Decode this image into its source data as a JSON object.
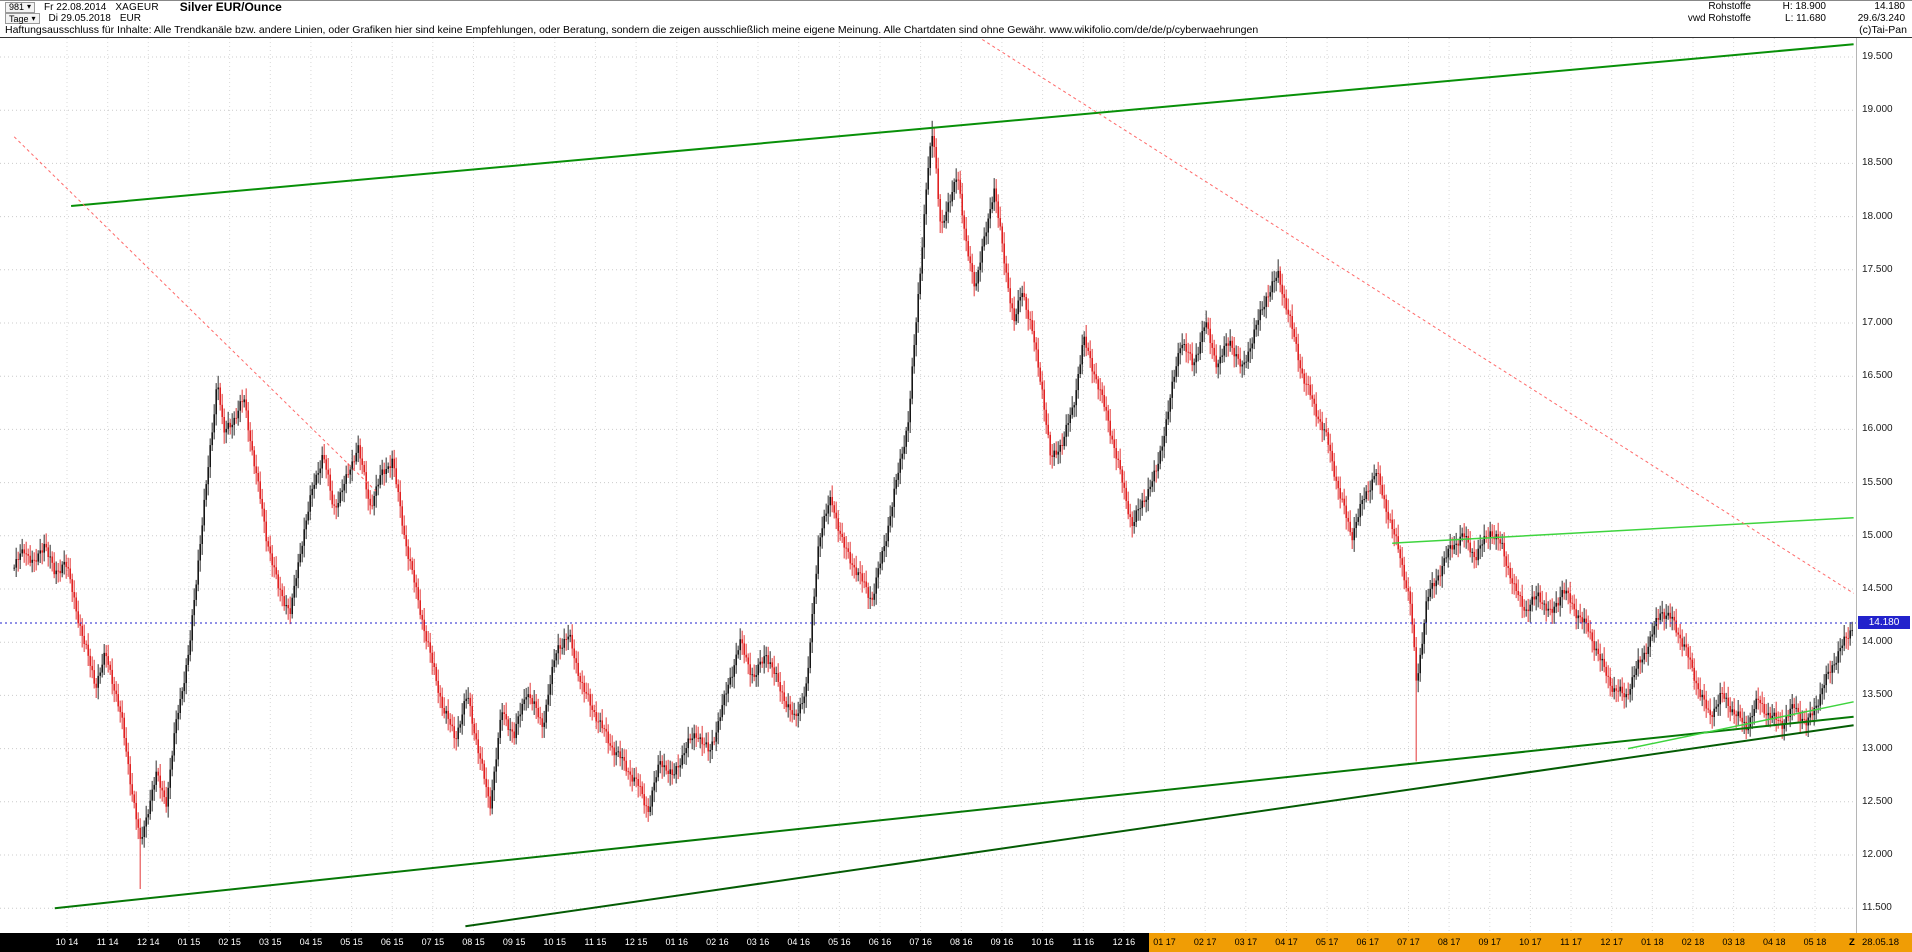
{
  "header": {
    "bar_count": "981",
    "period": "Tage",
    "start_date": "Fr 22.08.2014",
    "end_date": "Di 29.05.2018",
    "symbol": "XAGEUR",
    "currency": "EUR",
    "title": "Silver EUR/Ounce",
    "feed1": "Rohstoffe",
    "feed2": "vwd Rohstoffe",
    "high_label": "H: 18.900",
    "low_label": "L: 11.680",
    "last_price": "14.180",
    "extra_info": "29.6/3.240"
  },
  "disclaimer": {
    "text": "Haftungsausschluss für Inhalte: Alle Trendkanäle bzw. andere Linien, oder Grafiken hier sind keine Empfehlungen, oder Beratung, sondern die zeigen ausschließlich meine eigene Meinung. Alle Chartdaten sind ohne Gewähr.  www.wikifolio.com/de/de/p/cyberwaehrungen",
    "copyright": "(c)Tai-Pan"
  },
  "timeline": {
    "z_label": "Z",
    "end_date_label": "28.05.18",
    "highlight_from_label": "01 17"
  },
  "chart_data": {
    "type": "candlestick",
    "title": "Silver EUR/Ounce",
    "symbol": "XAGEUR",
    "unit": "EUR",
    "high": 18.9,
    "low": 11.68,
    "last_price": 14.18,
    "ylim": [
      11.27,
      19.68
    ],
    "grid": true,
    "y_ticks": [
      "19.500",
      "19.000",
      "18.500",
      "18.000",
      "17.500",
      "17.000",
      "16.500",
      "16.000",
      "15.500",
      "15.000",
      "14.500",
      "14.000",
      "13.500",
      "13.000",
      "12.500",
      "12.000",
      "11.500"
    ],
    "x_labels": [
      "10 14",
      "11 14",
      "12 14",
      "01 15",
      "02 15",
      "03 15",
      "04 15",
      "05 15",
      "06 15",
      "07 15",
      "08 15",
      "09 15",
      "10 15",
      "11 15",
      "12 15",
      "01 16",
      "02 16",
      "03 16",
      "04 16",
      "05 16",
      "06 16",
      "07 16",
      "08 16",
      "09 16",
      "10 16",
      "11 16",
      "12 16",
      "01 17",
      "02 17",
      "03 17",
      "04 17",
      "05 17",
      "06 17",
      "07 17",
      "08 17",
      "09 17",
      "10 17",
      "11 17",
      "12 17",
      "01 18",
      "02 18",
      "03 18",
      "04 18",
      "05 18"
    ],
    "waypoints": [
      [
        -1.3,
        14.7
      ],
      [
        -1.05,
        14.88
      ],
      [
        -0.8,
        14.72
      ],
      [
        -0.55,
        14.95
      ],
      [
        -0.3,
        14.62
      ],
      [
        -0.05,
        14.78
      ],
      [
        0.2,
        14.35
      ],
      [
        0.45,
        13.95
      ],
      [
        0.7,
        13.6
      ],
      [
        0.95,
        13.88
      ],
      [
        1.15,
        13.6
      ],
      [
        1.35,
        13.25
      ],
      [
        1.6,
        12.6
      ],
      [
        1.8,
        12.1
      ],
      [
        2.0,
        12.45
      ],
      [
        2.2,
        12.75
      ],
      [
        2.45,
        12.5
      ],
      [
        2.7,
        13.3
      ],
      [
        3.0,
        13.9
      ],
      [
        3.3,
        15.05
      ],
      [
        3.55,
        15.9
      ],
      [
        3.7,
        16.5
      ],
      [
        3.85,
        15.95
      ],
      [
        4.1,
        16.1
      ],
      [
        4.35,
        16.28
      ],
      [
        4.6,
        15.7
      ],
      [
        4.9,
        15.0
      ],
      [
        5.2,
        14.5
      ],
      [
        5.5,
        14.28
      ],
      [
        5.8,
        15.0
      ],
      [
        6.05,
        15.45
      ],
      [
        6.3,
        15.78
      ],
      [
        6.55,
        15.25
      ],
      [
        6.85,
        15.5
      ],
      [
        7.15,
        15.85
      ],
      [
        7.45,
        15.28
      ],
      [
        7.75,
        15.58
      ],
      [
        8.0,
        15.72
      ],
      [
        8.3,
        15.0
      ],
      [
        8.6,
        14.45
      ],
      [
        8.95,
        13.85
      ],
      [
        9.25,
        13.38
      ],
      [
        9.55,
        13.1
      ],
      [
        9.85,
        13.5
      ],
      [
        10.15,
        12.92
      ],
      [
        10.4,
        12.46
      ],
      [
        10.7,
        13.35
      ],
      [
        11.0,
        13.12
      ],
      [
        11.3,
        13.55
      ],
      [
        11.7,
        13.22
      ],
      [
        12.05,
        13.95
      ],
      [
        12.35,
        14.05
      ],
      [
        12.7,
        13.55
      ],
      [
        13.0,
        13.32
      ],
      [
        13.35,
        13.05
      ],
      [
        13.7,
        12.86
      ],
      [
        14.05,
        12.65
      ],
      [
        14.3,
        12.42
      ],
      [
        14.6,
        12.9
      ],
      [
        14.9,
        12.72
      ],
      [
        15.2,
        13.0
      ],
      [
        15.5,
        13.15
      ],
      [
        15.8,
        12.95
      ],
      [
        16.2,
        13.5
      ],
      [
        16.55,
        14.0
      ],
      [
        16.9,
        13.66
      ],
      [
        17.2,
        13.9
      ],
      [
        17.5,
        13.6
      ],
      [
        17.9,
        13.26
      ],
      [
        18.2,
        13.6
      ],
      [
        18.5,
        15.0
      ],
      [
        18.8,
        15.35
      ],
      [
        19.1,
        14.9
      ],
      [
        19.45,
        14.65
      ],
      [
        19.8,
        14.4
      ],
      [
        20.1,
        14.9
      ],
      [
        20.4,
        15.5
      ],
      [
        20.7,
        16.1
      ],
      [
        20.95,
        17.3
      ],
      [
        21.15,
        18.35
      ],
      [
        21.3,
        18.8
      ],
      [
        21.5,
        17.9
      ],
      [
        21.7,
        18.1
      ],
      [
        21.9,
        18.45
      ],
      [
        22.1,
        17.75
      ],
      [
        22.35,
        17.35
      ],
      [
        22.6,
        17.85
      ],
      [
        22.8,
        18.28
      ],
      [
        23.05,
        17.6
      ],
      [
        23.3,
        17.0
      ],
      [
        23.5,
        17.32
      ],
      [
        23.75,
        16.9
      ],
      [
        24.0,
        16.35
      ],
      [
        24.2,
        15.7
      ],
      [
        24.5,
        15.9
      ],
      [
        24.75,
        16.2
      ],
      [
        25.0,
        16.85
      ],
      [
        25.3,
        16.5
      ],
      [
        25.6,
        16.1
      ],
      [
        25.9,
        15.6
      ],
      [
        26.2,
        15.1
      ],
      [
        26.5,
        15.35
      ],
      [
        26.8,
        15.6
      ],
      [
        27.1,
        16.2
      ],
      [
        27.4,
        16.85
      ],
      [
        27.7,
        16.6
      ],
      [
        28.0,
        17.0
      ],
      [
        28.3,
        16.6
      ],
      [
        28.6,
        16.85
      ],
      [
        28.9,
        16.55
      ],
      [
        29.2,
        16.9
      ],
      [
        29.5,
        17.25
      ],
      [
        29.8,
        17.45
      ],
      [
        30.1,
        17.0
      ],
      [
        30.4,
        16.5
      ],
      [
        30.7,
        16.2
      ],
      [
        31.0,
        15.9
      ],
      [
        31.3,
        15.4
      ],
      [
        31.6,
        15.0
      ],
      [
        31.9,
        15.35
      ],
      [
        32.2,
        15.6
      ],
      [
        32.5,
        15.2
      ],
      [
        32.8,
        14.8
      ],
      [
        33.05,
        14.35
      ],
      [
        33.2,
        13.6
      ],
      [
        33.45,
        14.4
      ],
      [
        33.75,
        14.65
      ],
      [
        34.05,
        14.9
      ],
      [
        34.35,
        15.0
      ],
      [
        34.65,
        14.8
      ],
      [
        35.0,
        15.05
      ],
      [
        35.3,
        14.9
      ],
      [
        35.6,
        14.5
      ],
      [
        35.9,
        14.3
      ],
      [
        36.2,
        14.45
      ],
      [
        36.5,
        14.25
      ],
      [
        36.8,
        14.5
      ],
      [
        37.1,
        14.3
      ],
      [
        37.45,
        14.1
      ],
      [
        37.75,
        13.8
      ],
      [
        38.05,
        13.55
      ],
      [
        38.35,
        13.5
      ],
      [
        38.65,
        13.78
      ],
      [
        38.95,
        14.02
      ],
      [
        39.2,
        14.3
      ],
      [
        39.5,
        14.2
      ],
      [
        39.8,
        13.95
      ],
      [
        40.1,
        13.6
      ],
      [
        40.4,
        13.3
      ],
      [
        40.7,
        13.5
      ],
      [
        41.0,
        13.35
      ],
      [
        41.3,
        13.2
      ],
      [
        41.6,
        13.45
      ],
      [
        41.9,
        13.3
      ],
      [
        42.2,
        13.24
      ],
      [
        42.5,
        13.4
      ],
      [
        42.8,
        13.22
      ],
      [
        43.1,
        13.48
      ],
      [
        43.35,
        13.72
      ],
      [
        43.6,
        13.92
      ],
      [
        43.8,
        14.05
      ],
      [
        43.95,
        14.18
      ]
    ],
    "spikes": [
      {
        "m": 1.8,
        "price": 11.68
      },
      {
        "m": 21.3,
        "price": 18.9
      },
      {
        "m": 33.2,
        "price": 12.88
      }
    ],
    "trendlines": [
      {
        "name": "rising-channel-upper",
        "m1": 0.1,
        "p1": 18.1,
        "m2": 43.95,
        "p2": 19.62,
        "color": "#089008",
        "width": 2,
        "dash": null
      },
      {
        "name": "support-long",
        "m1": -0.3,
        "p1": 11.5,
        "m2": 43.95,
        "p2": 13.3,
        "color": "#067806",
        "width": 2,
        "dash": null
      },
      {
        "name": "support-steep",
        "m1": 9.8,
        "p1": 11.33,
        "m2": 43.95,
        "p2": 13.22,
        "color": "#045c04",
        "width": 2,
        "dash": null
      },
      {
        "name": "resistance-flat-right",
        "m1": 32.6,
        "p1": 14.93,
        "m2": 43.95,
        "p2": 15.17,
        "color": "#3ed43e",
        "width": 1.5,
        "dash": null
      },
      {
        "name": "support-light-right",
        "m1": 38.4,
        "p1": 13.0,
        "m2": 43.95,
        "p2": 13.44,
        "color": "#3ed43e",
        "width": 1.5,
        "dash": null
      },
      {
        "name": "downtrend-main",
        "m1": 19.9,
        "p1": 20.3,
        "m2": 43.95,
        "p2": 14.46,
        "color": "#ff6a6a",
        "width": 1,
        "dash": "3 3"
      },
      {
        "name": "downtrend-left",
        "m1": -1.3,
        "p1": 18.75,
        "m2": 7.6,
        "p2": 15.42,
        "color": "#ff6a6a",
        "width": 1,
        "dash": "3 3"
      }
    ],
    "colors": {
      "candle_up": "#161616",
      "candle_down": "#e02020",
      "last_price_line": "#2222cc",
      "grid": "#cccccc",
      "timeline_highlight": "#f09d05"
    }
  }
}
